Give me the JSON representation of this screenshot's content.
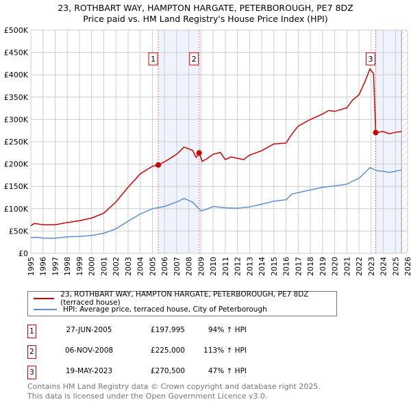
{
  "title": "23, ROTHBART WAY, HAMPTON HARGATE, PETERBOROUGH, PE7 8DZ",
  "subtitle": "Price paid vs. HM Land Registry's House Price Index (HPI)",
  "chart_data": {
    "type": "line",
    "title": "23, ROTHBART WAY, HAMPTON HARGATE, PETERBOROUGH, PE7 8DZ",
    "subtitle": "Price paid vs. HM Land Registry's House Price Index (HPI)",
    "xlim": [
      1995,
      2026
    ],
    "ylim": [
      0,
      500000
    ],
    "grid": true,
    "x_ticks": [
      "1995",
      "1996",
      "1997",
      "1998",
      "1999",
      "2000",
      "2001",
      "2002",
      "2003",
      "2004",
      "2005",
      "2006",
      "2007",
      "2008",
      "2009",
      "2010",
      "2011",
      "2012",
      "2013",
      "2014",
      "2015",
      "2016",
      "2017",
      "2018",
      "2019",
      "2020",
      "2021",
      "2022",
      "2023",
      "2024",
      "2025",
      "2026"
    ],
    "y_ticks": [
      {
        "v": 0,
        "l": "£0"
      },
      {
        "v": 50000,
        "l": "£50K"
      },
      {
        "v": 100000,
        "l": "£100K"
      },
      {
        "v": 150000,
        "l": "£150K"
      },
      {
        "v": 200000,
        "l": "£200K"
      },
      {
        "v": 250000,
        "l": "£250K"
      },
      {
        "v": 300000,
        "l": "£300K"
      },
      {
        "v": 350000,
        "l": "£350K"
      },
      {
        "v": 400000,
        "l": "£400K"
      },
      {
        "v": 450000,
        "l": "£450K"
      },
      {
        "v": 500000,
        "l": "£500K"
      }
    ],
    "series": [
      {
        "name": "23, ROTHBART WAY, HAMPTON HARGATE, PETERBOROUGH, PE7 8DZ (terraced house)",
        "color": "#cc0000",
        "x": [
          1995,
          1995.3,
          1996,
          1997,
          1998,
          1999,
          2000,
          2001,
          2002,
          2003,
          2004,
          2005,
          2005.49,
          2006,
          2007,
          2007.6,
          2008.3,
          2008.6,
          2008.85,
          2009.1,
          2009.5,
          2010,
          2010.6,
          2011,
          2011.5,
          2012,
          2012.5,
          2013,
          2014,
          2015,
          2016,
          2016.5,
          2017,
          2018,
          2019,
          2019.5,
          2020,
          2021,
          2021.5,
          2022,
          2022.5,
          2022.9,
          2023.2,
          2023.38,
          2024,
          2024.5,
          2025,
          2025.5
        ],
        "y": [
          62000,
          67000,
          64000,
          64000,
          69000,
          73000,
          79000,
          90000,
          115000,
          148000,
          178000,
          195000,
          197995,
          205000,
          222000,
          238000,
          231000,
          215000,
          225000,
          206000,
          212000,
          222000,
          226000,
          210000,
          216000,
          213000,
          210000,
          220000,
          230000,
          245000,
          247000,
          268000,
          285000,
          300000,
          312000,
          320000,
          318000,
          326000,
          344000,
          355000,
          385000,
          413000,
          403000,
          270500,
          273000,
          268000,
          271000,
          273000
        ]
      },
      {
        "name": "HPI: Average price, terraced house, City of Peterborough",
        "color": "#5b8fd6",
        "x": [
          1995,
          1995.5,
          1996,
          1997,
          1998,
          1999,
          2000,
          2001,
          2002,
          2003,
          2004,
          2005,
          2006,
          2007,
          2007.6,
          2008.3,
          2009,
          2009.5,
          2010,
          2011,
          2012,
          2013,
          2014,
          2015,
          2016,
          2016.5,
          2017,
          2018,
          2019,
          2020,
          2021,
          2021.5,
          2022,
          2022.9,
          2023.5,
          2024,
          2024.5,
          2025,
          2025.5
        ],
        "y": [
          35000,
          36000,
          34000,
          34000,
          37000,
          38000,
          40000,
          45000,
          55000,
          72000,
          88000,
          100000,
          105000,
          115000,
          123000,
          115000,
          95000,
          99000,
          105000,
          102000,
          101000,
          104000,
          110000,
          117000,
          120000,
          133000,
          136000,
          142000,
          148000,
          151000,
          155000,
          162000,
          168000,
          192000,
          185000,
          184000,
          181000,
          184000,
          187000
        ]
      }
    ],
    "sales": [
      {
        "label": "1",
        "x": 2005.49,
        "y": 197995
      },
      {
        "label": "2",
        "x": 2008.85,
        "y": 225000
      },
      {
        "label": "3",
        "x": 2023.38,
        "y": 270500
      }
    ],
    "shaded_periods": [
      [
        2005.49,
        2008.85
      ],
      [
        2023.38,
        2025.5
      ]
    ]
  },
  "legend": {
    "items": [
      {
        "label": "23, ROTHBART WAY, HAMPTON HARGATE, PETERBOROUGH, PE7 8DZ (terraced house)",
        "color": "#cc0000"
      },
      {
        "label": "HPI: Average price, terraced house, City of Peterborough",
        "color": "#5b8fd6"
      }
    ]
  },
  "transactions": [
    {
      "num": "1",
      "date": "27-JUN-2005",
      "price": "£197,995",
      "hpi": "94% ↑ HPI"
    },
    {
      "num": "2",
      "date": "06-NOV-2008",
      "price": "£225,000",
      "hpi": "113% ↑ HPI"
    },
    {
      "num": "3",
      "date": "19-MAY-2023",
      "price": "£270,500",
      "hpi": "47% ↑ HPI"
    }
  ],
  "footer": {
    "line1": "Contains HM Land Registry data © Crown copyright and database right 2025.",
    "line2": "This data is licensed under the Open Government Licence v3.0."
  }
}
